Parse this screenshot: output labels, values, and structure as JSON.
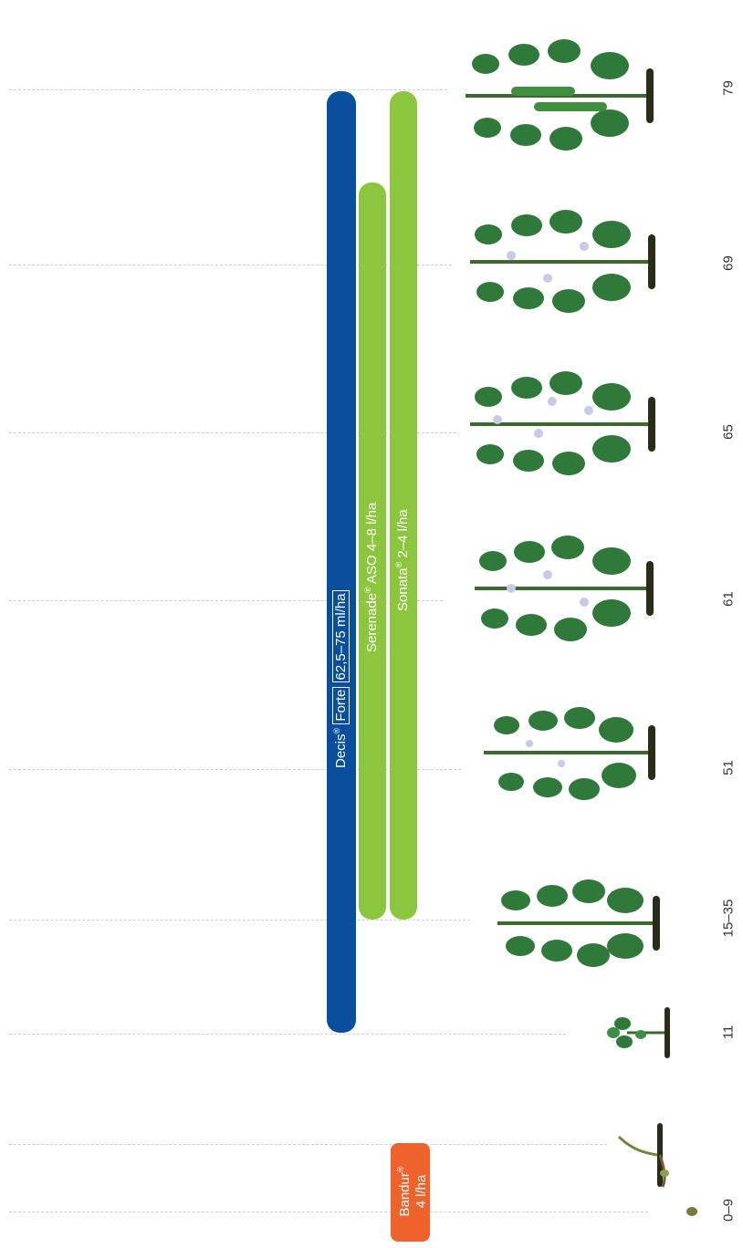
{
  "stages": [
    "0–9",
    "11",
    "15–35",
    "51",
    "61",
    "65",
    "69",
    "79"
  ],
  "products": [
    {
      "brand": "Decis",
      "mark": "®",
      "name": "Forte",
      "rate": "62,5–75 ml/ha",
      "color": "#0a4f9e",
      "range": [
        "11",
        "79"
      ]
    },
    {
      "brand": "Serenade",
      "mark": "®",
      "name": "ASO",
      "rate": "4–8 l/ha",
      "color": "#8cc63f",
      "range": [
        "15–35",
        "69"
      ]
    },
    {
      "brand": "Sonata",
      "mark": "®",
      "name": "",
      "rate": "2–4 l/ha",
      "color": "#8cc63f",
      "range": [
        "15–35",
        "79"
      ]
    },
    {
      "brand": "Bandur",
      "mark": "®",
      "name": "",
      "rate": "4 l/ha",
      "color": "#f0622b",
      "range": [
        "0–9",
        "0–9"
      ]
    }
  ],
  "plant_icons": [
    "seed-icon",
    "sprout-icon",
    "seedling-icon",
    "pea-plant-icon",
    "pea-plant-icon",
    "pea-plant-flowering-icon",
    "pea-plant-flowering-icon",
    "pea-plant-flowering-icon",
    "pea-plant-podded-icon"
  ]
}
